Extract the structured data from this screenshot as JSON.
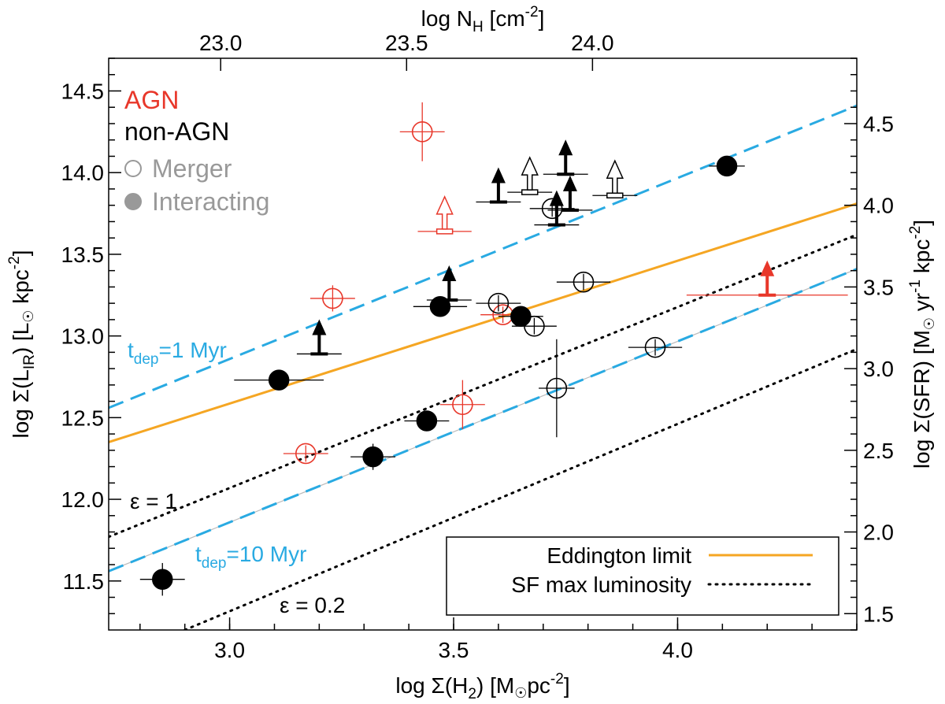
{
  "chart_data": {
    "type": "scatter",
    "xlabel_main": "log Σ(H",
    "xlabel_sub": "2",
    "xlabel_post": ") [M",
    "xlabel_sun": "☉",
    "xlabel_unit": "pc",
    "xlabel_sup": "-2",
    "xlabel_end": "]",
    "top_label_main": "log N",
    "top_label_sub": "H",
    "top_label_post": " [cm",
    "top_label_sup": "-2",
    "top_label_end": "]",
    "ylabel_left_main": "log Σ(L",
    "ylabel_left_sub": "IR",
    "ylabel_left_post": ") [L",
    "ylabel_left_sun": "☉",
    "ylabel_left_unit": " kpc",
    "ylabel_left_sup": "-2",
    "ylabel_left_end": "]",
    "ylabel_right_main": "log Σ(SFR) [M",
    "ylabel_right_sun": "☉",
    "ylabel_right_unit": " yr",
    "ylabel_right_sup1": "-1",
    "ylabel_right_unit2": " kpc",
    "ylabel_right_sup2": "-2",
    "ylabel_right_end": "]",
    "xlim": [
      2.73,
      4.4
    ],
    "ylim": [
      11.2,
      14.7
    ],
    "yright_lim": [
      1.4,
      4.9
    ],
    "x_ticks": [
      "3.0",
      "3.5",
      "4.0"
    ],
    "x_tick_values": [
      3.0,
      3.5,
      4.0
    ],
    "top_ticks": [
      "23.0",
      "23.5",
      "24.0"
    ],
    "top_tick_values": [
      2.98,
      3.395,
      3.81
    ],
    "y_ticks": [
      "11.5",
      "12.0",
      "12.5",
      "13.0",
      "13.5",
      "14.0",
      "14.5"
    ],
    "y_tick_values": [
      11.5,
      12.0,
      12.5,
      13.0,
      13.5,
      14.0,
      14.5
    ],
    "yright_ticks": [
      "1.5",
      "2.0",
      "2.5",
      "3.0",
      "3.5",
      "4.0",
      "4.5"
    ],
    "yright_tick_values": [
      1.5,
      2.0,
      2.5,
      3.0,
      3.5,
      4.0,
      4.5
    ],
    "grid": false,
    "colors": {
      "agn": "#e8372a",
      "black": "#000000",
      "gray": "#999999",
      "blue": "#29aae2",
      "orange": "#f5a623"
    },
    "legend_text": {
      "agn": "AGN",
      "non_agn": "non-AGN",
      "merger": "Merger",
      "interacting": "Interacting"
    },
    "lines_legend": {
      "placement": "bottom-right",
      "entries": [
        {
          "label": "Eddington limit",
          "style": "solid",
          "color": "#f5a623"
        },
        {
          "label": "SF max luminosity",
          "style": "dotted",
          "color": "#000000"
        }
      ]
    },
    "lines": [
      {
        "name": "tdep1",
        "style": "dashed",
        "color": "#29aae2",
        "x": [
          2.73,
          4.4
        ],
        "y": [
          12.56,
          14.41
        ]
      },
      {
        "name": "tdep10",
        "style": "dashed",
        "color": "#29aae2",
        "x": [
          2.73,
          4.4
        ],
        "y": [
          11.56,
          13.41
        ]
      },
      {
        "name": "eddington",
        "style": "solid",
        "color": "#f5a623",
        "x": [
          2.73,
          4.4
        ],
        "y": [
          12.35,
          13.81
        ]
      },
      {
        "name": "eps1",
        "style": "dotted",
        "color": "#000000",
        "x": [
          2.73,
          4.4
        ],
        "y": [
          11.77,
          13.62
        ]
      },
      {
        "name": "eps02",
        "style": "dotted",
        "color": "#000000",
        "x": [
          2.9,
          4.4
        ],
        "y": [
          11.2,
          12.92
        ]
      }
    ],
    "line_labels": {
      "tdep1_main": "t",
      "tdep1_sub": "dep",
      "tdep1_post": "=1 Myr",
      "tdep10_main": "t",
      "tdep10_sub": "dep",
      "tdep10_post": "=10 Myr",
      "eps1": "ε = 1",
      "eps02": "ε = 0.2"
    },
    "points": [
      {
        "group": "agn",
        "marker": "open",
        "x": 3.43,
        "y": 14.25,
        "xerr": 0.05,
        "yerr": 0.18
      },
      {
        "group": "agn",
        "marker": "open",
        "x": 3.23,
        "y": 13.23,
        "xerr": 0.05,
        "yerr": 0.08
      },
      {
        "group": "agn",
        "marker": "open",
        "x": 3.61,
        "y": 13.13,
        "xerr": 0.05,
        "yerr": 0.05
      },
      {
        "group": "agn",
        "marker": "open",
        "x": 3.52,
        "y": 12.58,
        "xerr": 0.05,
        "yerr": 0.15
      },
      {
        "group": "agn",
        "marker": "open",
        "x": 3.17,
        "y": 12.28,
        "xerr": 0.05,
        "yerr": 0.05
      },
      {
        "group": "nonagn",
        "marker": "filled",
        "x": 4.11,
        "y": 14.04,
        "xerr": 0.04,
        "yerr": 0.04
      },
      {
        "group": "nonagn",
        "marker": "filled",
        "x": 3.47,
        "y": 13.18,
        "xerr": 0.06,
        "yerr": 0.06
      },
      {
        "group": "nonagn",
        "marker": "filled",
        "x": 3.65,
        "y": 13.12,
        "xerr": 0.05,
        "yerr": 0.05
      },
      {
        "group": "nonagn",
        "marker": "filled",
        "x": 3.11,
        "y": 12.73,
        "xerr": 0.1,
        "yerr": 0.04
      },
      {
        "group": "nonagn",
        "marker": "filled",
        "x": 3.44,
        "y": 12.48,
        "xerr": 0.05,
        "yerr": 0.04
      },
      {
        "group": "nonagn",
        "marker": "filled",
        "x": 3.32,
        "y": 12.26,
        "xerr": 0.05,
        "yerr": 0.08
      },
      {
        "group": "nonagn",
        "marker": "filled",
        "x": 2.85,
        "y": 11.51,
        "xerr": 0.05,
        "yerr": 0.1
      },
      {
        "group": "nonagn",
        "marker": "open",
        "x": 3.72,
        "y": 13.78,
        "xerr": 0.05,
        "yerr": 0.05
      },
      {
        "group": "nonagn",
        "marker": "open",
        "x": 3.6,
        "y": 13.2,
        "xerr": 0.05,
        "yerr": 0.05
      },
      {
        "group": "nonagn",
        "marker": "open",
        "x": 3.68,
        "y": 13.06,
        "xerr": 0.05,
        "yerr": 0.05
      },
      {
        "group": "nonagn",
        "marker": "open",
        "x": 3.79,
        "y": 13.33,
        "xerr": 0.06,
        "yerr": 0.05
      },
      {
        "group": "nonagn",
        "marker": "open",
        "x": 3.95,
        "y": 12.93,
        "xerr": 0.06,
        "yerr": 0.05
      },
      {
        "group": "nonagn",
        "marker": "open",
        "x": 3.73,
        "y": 12.68,
        "xerr": 0.04,
        "yerr": 0.3
      }
    ],
    "limits": [
      {
        "group": "agn",
        "style": "open",
        "x": 3.48,
        "y": 13.64,
        "xerr": 0.06
      },
      {
        "group": "agn",
        "style": "filled",
        "x": 4.2,
        "y": 13.25,
        "xerr": 0.18
      },
      {
        "group": "nonagn",
        "style": "filled",
        "x": 3.2,
        "y": 12.89,
        "xerr": 0.05
      },
      {
        "group": "nonagn",
        "style": "filled",
        "x": 3.49,
        "y": 13.22,
        "xerr": 0.05
      },
      {
        "group": "nonagn",
        "style": "filled",
        "x": 3.6,
        "y": 13.82,
        "xerr": 0.05
      },
      {
        "group": "nonagn",
        "style": "filled",
        "x": 3.75,
        "y": 13.99,
        "xerr": 0.05
      },
      {
        "group": "nonagn",
        "style": "filled",
        "x": 3.76,
        "y": 13.77,
        "xerr": 0.05
      },
      {
        "group": "nonagn",
        "style": "filled",
        "x": 3.73,
        "y": 13.68,
        "xerr": 0.05
      },
      {
        "group": "nonagn",
        "style": "open",
        "x": 3.67,
        "y": 13.88,
        "xerr": 0.05
      },
      {
        "group": "nonagn",
        "style": "open",
        "x": 3.86,
        "y": 13.86,
        "xerr": 0.05
      }
    ]
  }
}
